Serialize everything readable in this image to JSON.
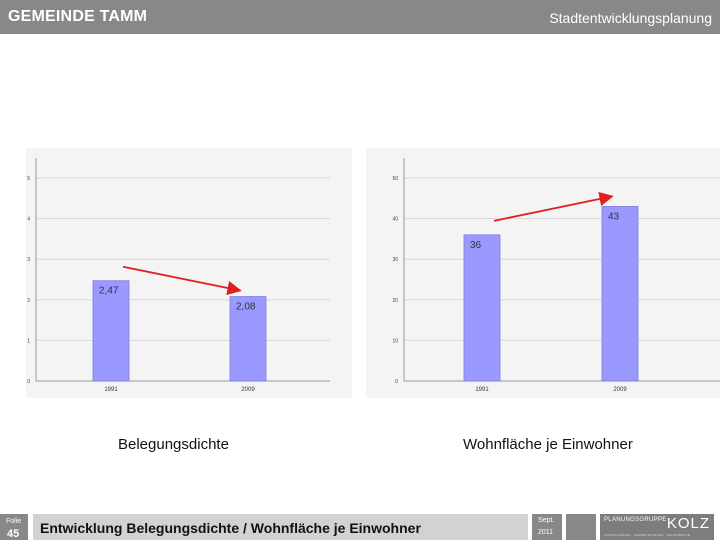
{
  "header": {
    "title": "GEMEINDE TAMM",
    "subtitle": "Stadtentwicklungsplanung"
  },
  "chart_data": [
    {
      "type": "bar",
      "categories": [
        "1991",
        "2009"
      ],
      "values": [
        2.47,
        2.08
      ],
      "value_labels": [
        "2,47",
        "2,08"
      ],
      "ylim": [
        0,
        5
      ],
      "yticks": [
        0,
        1,
        2,
        3,
        4,
        5
      ],
      "grid": true,
      "trend_arrow": "down",
      "bar_color": "#9999ff",
      "arrow_color": "#e02020"
    },
    {
      "type": "bar",
      "categories": [
        "1991",
        "2009"
      ],
      "values": [
        36,
        43
      ],
      "value_labels": [
        "36",
        "43"
      ],
      "ylim": [
        0,
        50
      ],
      "yticks": [
        0,
        10,
        20,
        30,
        40,
        50
      ],
      "grid": true,
      "trend_arrow": "up",
      "bar_color": "#9999ff",
      "arrow_color": "#e02020"
    }
  ],
  "captions": {
    "left": "Belegungsdichte",
    "right": "Wohnfläche je Einwohner"
  },
  "footer": {
    "folie_label": "Folie",
    "slide_number": "45",
    "title": "Entwicklung Belegungsdichte / Wohnfläche je Einwohner",
    "date_month": "Sept.",
    "date_year": "2011",
    "logo_small": "PLANUNGSGRUPPE",
    "logo_big": "KOLZ",
    "logo_line": "STADTPLANUNG · UMWELTPLANUNG · ARCHITEKTUR"
  }
}
